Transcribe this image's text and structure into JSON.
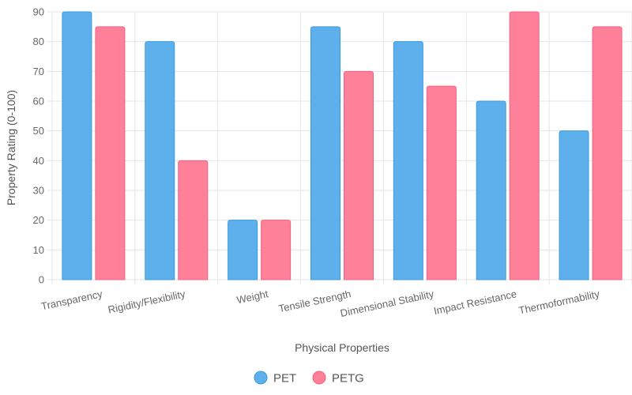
{
  "chart_data": {
    "type": "bar",
    "categories": [
      "Transparency",
      "Rigidity/Flexibility",
      "Weight",
      "Tensile Strength",
      "Dimensional Stability",
      "Impact Resistance",
      "Thermoformability"
    ],
    "series": [
      {
        "name": "PET",
        "values": [
          90,
          80,
          20,
          85,
          80,
          60,
          50
        ],
        "color": "#5eb0ec",
        "border": "#3a9be0"
      },
      {
        "name": "PETG",
        "values": [
          85,
          40,
          20,
          70,
          65,
          90,
          85
        ],
        "color": "#ff8099",
        "border": "#f7607f"
      }
    ],
    "xlabel": "Physical Properties",
    "ylabel": "Property Rating (0-100)",
    "ylim": [
      0,
      90
    ],
    "ytick_step": 10,
    "grid": true,
    "legend_position": "bottom"
  }
}
